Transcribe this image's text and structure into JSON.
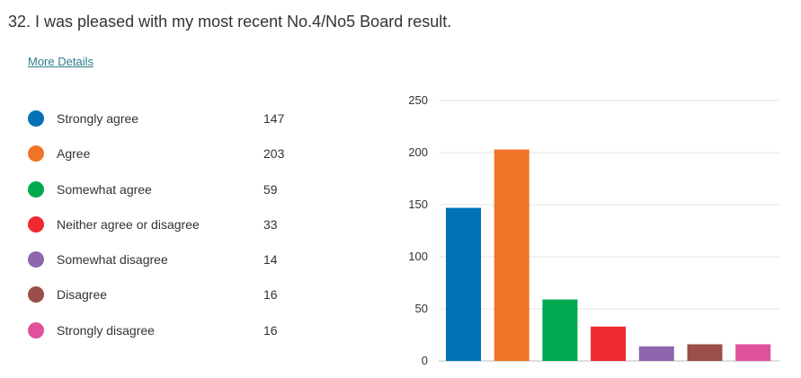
{
  "question": {
    "title": "32.  I was pleased with my most recent No.4/No5 Board result.",
    "more_details": "More Details"
  },
  "chart_data": {
    "type": "bar",
    "categories": [
      "Strongly agree",
      "Agree",
      "Somewhat agree",
      "Neither agree or disagree",
      "Somewhat disagree",
      "Disagree",
      "Strongly disagree"
    ],
    "values": [
      147,
      203,
      59,
      33,
      14,
      16,
      16
    ],
    "colors": [
      "#0072b5",
      "#f07428",
      "#00a94f",
      "#ee2a2e",
      "#8e66ae",
      "#9a4f48",
      "#e0509b"
    ],
    "ylim": [
      0,
      250
    ],
    "yticks": [
      0,
      50,
      100,
      150,
      200,
      250
    ],
    "grid": true,
    "legend_position": "left"
  }
}
